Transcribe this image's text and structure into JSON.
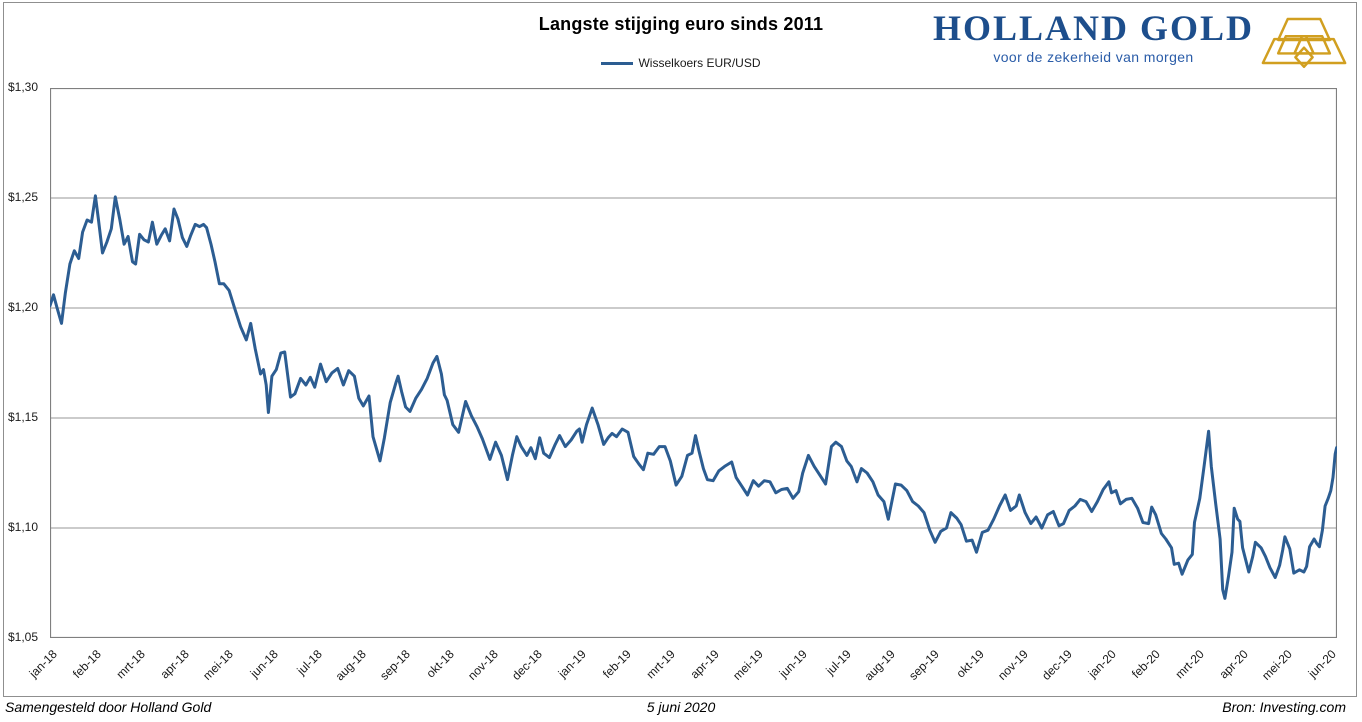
{
  "header": {
    "title": "Langste stijging euro sinds 2011",
    "legend_label": "Wisselkoers EUR/USD"
  },
  "logo": {
    "name": "HOLLAND GOLD",
    "tagline": "voor de zekerheid van morgen",
    "name_color": "#1d4e8c",
    "tagline_color": "#2a5ca8",
    "gold_color": "#d19f20"
  },
  "footer": {
    "left": "Samengesteld door Holland Gold",
    "center": "5 juni 2020",
    "right": "Bron: Investing.com"
  },
  "chart_data": {
    "type": "line",
    "title": "Langste stijging euro sinds 2011",
    "series_name": "Wisselkoers EUR/USD",
    "line_color": "#2c5d92",
    "grid_color": "#979797",
    "axis_color": "#7f7f7f",
    "ylim": [
      1.05,
      1.3
    ],
    "x_months_span": 29.17,
    "grid": "horizontal-only",
    "legend_position": "top-center",
    "y_ticks": [
      {
        "label": "$1,30",
        "value": 1.3
      },
      {
        "label": "$1,25",
        "value": 1.25
      },
      {
        "label": "$1,20",
        "value": 1.2
      },
      {
        "label": "$1,15",
        "value": 1.15
      },
      {
        "label": "$1,10",
        "value": 1.1
      },
      {
        "label": "$1,05",
        "value": 1.05
      }
    ],
    "x_labels": [
      "jan-18",
      "feb-18",
      "mrt-18",
      "apr-18",
      "mei-18",
      "jun-18",
      "jul-18",
      "aug-18",
      "sep-18",
      "okt-18",
      "nov-18",
      "dec-18",
      "jan-19",
      "feb-19",
      "mrt-19",
      "apr-19",
      "mei-19",
      "jun-19",
      "jul-19",
      "aug-19",
      "sep-19",
      "okt-19",
      "nov-19",
      "dec-19",
      "jan-20",
      "feb-20",
      "mrt-20",
      "apr-20",
      "mei-20",
      "jun-20"
    ],
    "points": [
      [
        0.0,
        1.201
      ],
      [
        0.08,
        1.206
      ],
      [
        0.16,
        1.2
      ],
      [
        0.26,
        1.193
      ],
      [
        0.35,
        1.207
      ],
      [
        0.45,
        1.22
      ],
      [
        0.55,
        1.226
      ],
      [
        0.65,
        1.2225
      ],
      [
        0.74,
        1.2345
      ],
      [
        0.84,
        1.24
      ],
      [
        0.94,
        1.239
      ],
      [
        1.03,
        1.251
      ],
      [
        1.1,
        1.24
      ],
      [
        1.19,
        1.225
      ],
      [
        1.29,
        1.23
      ],
      [
        1.39,
        1.236
      ],
      [
        1.48,
        1.2505
      ],
      [
        1.58,
        1.2405
      ],
      [
        1.68,
        1.229
      ],
      [
        1.77,
        1.2325
      ],
      [
        1.87,
        1.221
      ],
      [
        1.94,
        1.22
      ],
      [
        2.03,
        1.2335
      ],
      [
        2.13,
        1.231
      ],
      [
        2.23,
        1.23
      ],
      [
        2.32,
        1.239
      ],
      [
        2.42,
        1.229
      ],
      [
        2.52,
        1.233
      ],
      [
        2.61,
        1.236
      ],
      [
        2.71,
        1.2305
      ],
      [
        2.81,
        1.245
      ],
      [
        2.9,
        1.2405
      ],
      [
        3.0,
        1.232
      ],
      [
        3.1,
        1.228
      ],
      [
        3.19,
        1.233
      ],
      [
        3.29,
        1.238
      ],
      [
        3.39,
        1.237
      ],
      [
        3.48,
        1.238
      ],
      [
        3.55,
        1.2365
      ],
      [
        3.65,
        1.229
      ],
      [
        3.74,
        1.221
      ],
      [
        3.84,
        1.211
      ],
      [
        3.94,
        1.211
      ],
      [
        4.06,
        1.208
      ],
      [
        4.19,
        1.1995
      ],
      [
        4.32,
        1.1915
      ],
      [
        4.45,
        1.1855
      ],
      [
        4.55,
        1.193
      ],
      [
        4.65,
        1.1815
      ],
      [
        4.77,
        1.17
      ],
      [
        4.84,
        1.172
      ],
      [
        4.9,
        1.165
      ],
      [
        4.95,
        1.1525
      ],
      [
        5.03,
        1.169
      ],
      [
        5.13,
        1.172
      ],
      [
        5.23,
        1.1795
      ],
      [
        5.32,
        1.18
      ],
      [
        5.45,
        1.1595
      ],
      [
        5.55,
        1.161
      ],
      [
        5.68,
        1.168
      ],
      [
        5.8,
        1.165
      ],
      [
        5.9,
        1.1685
      ],
      [
        6.0,
        1.164
      ],
      [
        6.13,
        1.1745
      ],
      [
        6.26,
        1.1665
      ],
      [
        6.39,
        1.1705
      ],
      [
        6.52,
        1.1725
      ],
      [
        6.65,
        1.165
      ],
      [
        6.77,
        1.1715
      ],
      [
        6.9,
        1.169
      ],
      [
        7.0,
        1.159
      ],
      [
        7.1,
        1.1555
      ],
      [
        7.23,
        1.16
      ],
      [
        7.32,
        1.1415
      ],
      [
        7.48,
        1.1305
      ],
      [
        7.58,
        1.141
      ],
      [
        7.71,
        1.157
      ],
      [
        7.84,
        1.166
      ],
      [
        7.89,
        1.169
      ],
      [
        7.97,
        1.162
      ],
      [
        8.06,
        1.155
      ],
      [
        8.16,
        1.153
      ],
      [
        8.29,
        1.159
      ],
      [
        8.42,
        1.163
      ],
      [
        8.55,
        1.168
      ],
      [
        8.68,
        1.175
      ],
      [
        8.77,
        1.178
      ],
      [
        8.87,
        1.17
      ],
      [
        8.94,
        1.1605
      ],
      [
        9.0,
        1.158
      ],
      [
        9.13,
        1.147
      ],
      [
        9.26,
        1.1435
      ],
      [
        9.42,
        1.1575
      ],
      [
        9.55,
        1.151
      ],
      [
        9.68,
        1.146
      ],
      [
        9.8,
        1.1405
      ],
      [
        9.97,
        1.1312
      ],
      [
        10.1,
        1.139
      ],
      [
        10.23,
        1.133
      ],
      [
        10.37,
        1.122
      ],
      [
        10.48,
        1.133
      ],
      [
        10.58,
        1.1415
      ],
      [
        10.68,
        1.137
      ],
      [
        10.81,
        1.133
      ],
      [
        10.9,
        1.1365
      ],
      [
        11.0,
        1.1315
      ],
      [
        11.1,
        1.141
      ],
      [
        11.19,
        1.134
      ],
      [
        11.32,
        1.132
      ],
      [
        11.45,
        1.138
      ],
      [
        11.55,
        1.142
      ],
      [
        11.68,
        1.137
      ],
      [
        11.81,
        1.14
      ],
      [
        11.94,
        1.144
      ],
      [
        12.0,
        1.145
      ],
      [
        12.06,
        1.139
      ],
      [
        12.16,
        1.147
      ],
      [
        12.29,
        1.1545
      ],
      [
        12.42,
        1.147
      ],
      [
        12.55,
        1.138
      ],
      [
        12.65,
        1.141
      ],
      [
        12.74,
        1.143
      ],
      [
        12.84,
        1.1415
      ],
      [
        12.97,
        1.145
      ],
      [
        13.1,
        1.1435
      ],
      [
        13.23,
        1.1325
      ],
      [
        13.35,
        1.129
      ],
      [
        13.45,
        1.1265
      ],
      [
        13.55,
        1.134
      ],
      [
        13.68,
        1.1335
      ],
      [
        13.81,
        1.137
      ],
      [
        13.94,
        1.137
      ],
      [
        14.06,
        1.1305
      ],
      [
        14.19,
        1.1195
      ],
      [
        14.32,
        1.1235
      ],
      [
        14.45,
        1.133
      ],
      [
        14.55,
        1.134
      ],
      [
        14.63,
        1.142
      ],
      [
        14.71,
        1.135
      ],
      [
        14.81,
        1.127
      ],
      [
        14.9,
        1.122
      ],
      [
        15.03,
        1.1215
      ],
      [
        15.16,
        1.126
      ],
      [
        15.29,
        1.128
      ],
      [
        15.45,
        1.13
      ],
      [
        15.55,
        1.123
      ],
      [
        15.68,
        1.119
      ],
      [
        15.81,
        1.115
      ],
      [
        15.94,
        1.1215
      ],
      [
        16.06,
        1.119
      ],
      [
        16.19,
        1.1215
      ],
      [
        16.32,
        1.121
      ],
      [
        16.45,
        1.116
      ],
      [
        16.58,
        1.1175
      ],
      [
        16.71,
        1.118
      ],
      [
        16.84,
        1.1135
      ],
      [
        16.97,
        1.1165
      ],
      [
        17.06,
        1.125
      ],
      [
        17.19,
        1.133
      ],
      [
        17.32,
        1.128
      ],
      [
        17.45,
        1.124
      ],
      [
        17.58,
        1.12
      ],
      [
        17.71,
        1.137
      ],
      [
        17.81,
        1.139
      ],
      [
        17.94,
        1.137
      ],
      [
        18.06,
        1.1305
      ],
      [
        18.16,
        1.128
      ],
      [
        18.29,
        1.121
      ],
      [
        18.39,
        1.127
      ],
      [
        18.52,
        1.125
      ],
      [
        18.65,
        1.121
      ],
      [
        18.77,
        1.115
      ],
      [
        18.9,
        1.112
      ],
      [
        19.0,
        1.104
      ],
      [
        19.16,
        1.12
      ],
      [
        19.29,
        1.1195
      ],
      [
        19.42,
        1.117
      ],
      [
        19.55,
        1.112
      ],
      [
        19.68,
        1.11
      ],
      [
        19.81,
        1.107
      ],
      [
        19.94,
        1.099
      ],
      [
        20.06,
        1.0935
      ],
      [
        20.19,
        1.0985
      ],
      [
        20.32,
        1.1
      ],
      [
        20.42,
        1.107
      ],
      [
        20.55,
        1.1045
      ],
      [
        20.65,
        1.1015
      ],
      [
        20.77,
        1.094
      ],
      [
        20.9,
        1.0945
      ],
      [
        21.0,
        1.089
      ],
      [
        21.13,
        1.098
      ],
      [
        21.26,
        1.099
      ],
      [
        21.39,
        1.104
      ],
      [
        21.52,
        1.11
      ],
      [
        21.65,
        1.115
      ],
      [
        21.77,
        1.108
      ],
      [
        21.9,
        1.11
      ],
      [
        21.97,
        1.115
      ],
      [
        22.1,
        1.107
      ],
      [
        22.23,
        1.102
      ],
      [
        22.35,
        1.105
      ],
      [
        22.48,
        1.1
      ],
      [
        22.61,
        1.106
      ],
      [
        22.74,
        1.1075
      ],
      [
        22.87,
        1.101
      ],
      [
        22.97,
        1.102
      ],
      [
        23.1,
        1.108
      ],
      [
        23.23,
        1.11
      ],
      [
        23.35,
        1.113
      ],
      [
        23.48,
        1.112
      ],
      [
        23.61,
        1.1075
      ],
      [
        23.74,
        1.112
      ],
      [
        23.87,
        1.1175
      ],
      [
        24.0,
        1.121
      ],
      [
        24.06,
        1.116
      ],
      [
        24.16,
        1.117
      ],
      [
        24.26,
        1.111
      ],
      [
        24.39,
        1.113
      ],
      [
        24.52,
        1.1135
      ],
      [
        24.65,
        1.109
      ],
      [
        24.77,
        1.1025
      ],
      [
        24.9,
        1.102
      ],
      [
        24.97,
        1.1095
      ],
      [
        25.06,
        1.106
      ],
      [
        25.19,
        1.0975
      ],
      [
        25.29,
        1.095
      ],
      [
        25.42,
        1.091
      ],
      [
        25.48,
        1.0835
      ],
      [
        25.58,
        1.084
      ],
      [
        25.66,
        1.079
      ],
      [
        25.79,
        1.0855
      ],
      [
        25.89,
        1.088
      ],
      [
        25.94,
        1.1026
      ],
      [
        26.06,
        1.1135
      ],
      [
        26.16,
        1.1285
      ],
      [
        26.26,
        1.144
      ],
      [
        26.32,
        1.128
      ],
      [
        26.42,
        1.111
      ],
      [
        26.52,
        1.095
      ],
      [
        26.58,
        1.072
      ],
      [
        26.63,
        1.068
      ],
      [
        26.71,
        1.078
      ],
      [
        26.79,
        1.089
      ],
      [
        26.84,
        1.109
      ],
      [
        26.92,
        1.104
      ],
      [
        26.97,
        1.103
      ],
      [
        27.03,
        1.091
      ],
      [
        27.1,
        1.0855
      ],
      [
        27.17,
        1.08
      ],
      [
        27.26,
        1.087
      ],
      [
        27.32,
        1.0935
      ],
      [
        27.45,
        1.091
      ],
      [
        27.55,
        1.087
      ],
      [
        27.65,
        1.082
      ],
      [
        27.77,
        1.0775
      ],
      [
        27.87,
        1.083
      ],
      [
        27.94,
        1.09
      ],
      [
        27.99,
        1.096
      ],
      [
        28.1,
        1.0905
      ],
      [
        28.19,
        1.0795
      ],
      [
        28.32,
        1.081
      ],
      [
        28.42,
        1.08
      ],
      [
        28.48,
        1.0825
      ],
      [
        28.55,
        1.0915
      ],
      [
        28.65,
        1.095
      ],
      [
        28.71,
        1.093
      ],
      [
        28.77,
        1.0915
      ],
      [
        28.84,
        1.099
      ],
      [
        28.9,
        1.11
      ],
      [
        28.97,
        1.1135
      ],
      [
        29.03,
        1.117
      ],
      [
        29.08,
        1.123
      ],
      [
        29.13,
        1.1337
      ],
      [
        29.16,
        1.1365
      ]
    ]
  }
}
